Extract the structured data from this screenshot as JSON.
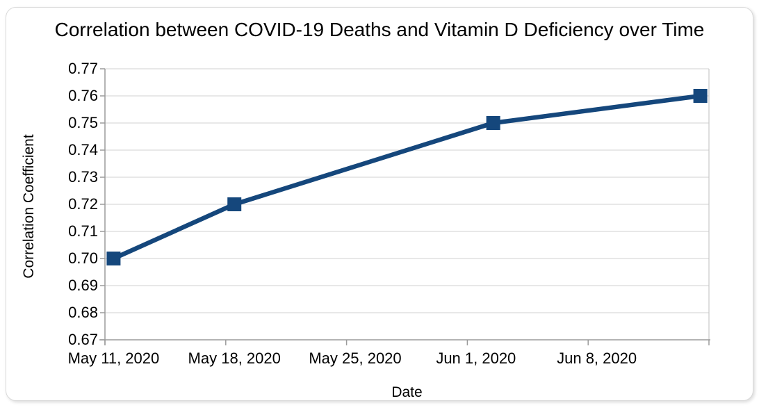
{
  "colors": {
    "series": "#15477c",
    "gridline": "#d9d9d9",
    "plot_right_edge": "#c9c9c9",
    "axis": "#9b9b9b",
    "text": "#000000",
    "card_border": "#d9d9d9",
    "background": "#ffffff"
  },
  "chart_data": {
    "type": "line",
    "title": "Correlation between COVID-19 Deaths and Vitamin D Deficiency over Time",
    "xlabel": "Date",
    "ylabel": "Correlation Coefficient",
    "grid": "horizontal",
    "legend": "none",
    "x_axis": {
      "tick_labels": [
        "May 11, 2020",
        "May 18, 2020",
        "May 25, 2020",
        "Jun 1, 2020",
        "Jun 8, 2020"
      ],
      "tick_label_days": [
        0,
        7,
        14,
        21,
        28
      ],
      "axis_tick_days": [
        -0.5,
        6.5,
        13.5,
        20.5,
        27.5,
        34.5
      ],
      "range_days": [
        -0.5,
        34.5
      ]
    },
    "y_axis": {
      "tick_labels": [
        "0.77",
        "0.76",
        "0.75",
        "0.74",
        "0.73",
        "0.72",
        "0.71",
        "0.70",
        "0.69",
        "0.68",
        "0.67"
      ],
      "range": [
        0.67,
        0.77
      ]
    },
    "series": [
      {
        "name": "Correlation Coefficient",
        "color": "#15477c",
        "marker": "square",
        "points": [
          {
            "date": "May 11, 2020",
            "day": 0,
            "value": 0.7
          },
          {
            "date": "May 18, 2020",
            "day": 7,
            "value": 0.72
          },
          {
            "date": "Jun 2, 2020",
            "day": 22,
            "value": 0.75
          },
          {
            "date": "Jun 14, 2020",
            "day": 34,
            "value": 0.76
          }
        ]
      }
    ]
  }
}
